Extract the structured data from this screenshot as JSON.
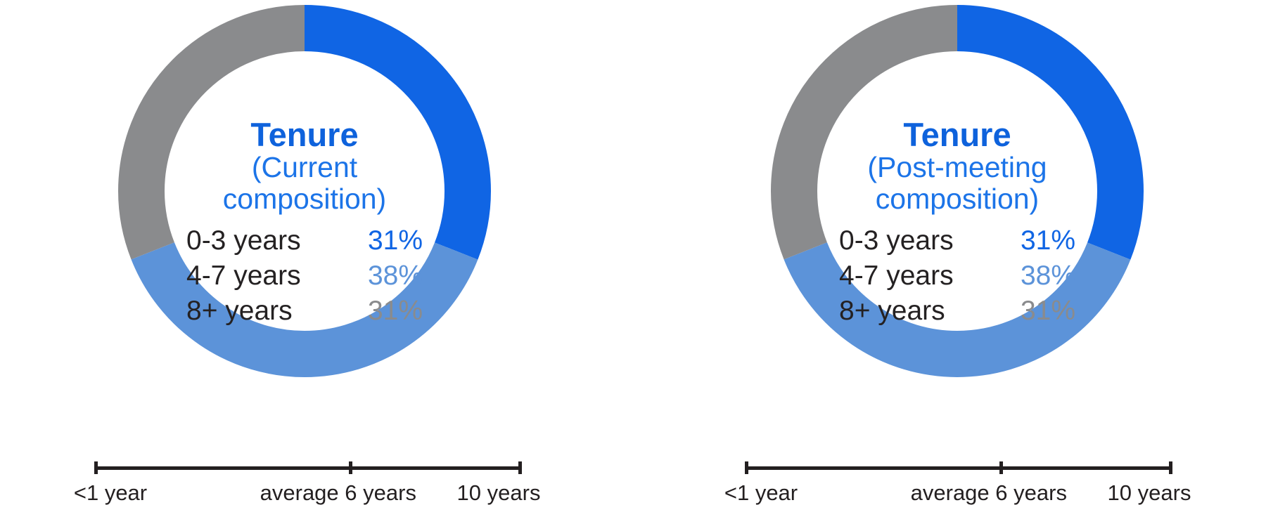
{
  "colors": {
    "title": "#0E62DC",
    "subtitle": "#1C74E8",
    "axis": "#231F20",
    "legend_label": "#242122",
    "segment_blue": "#1065E4",
    "segment_light_blue": "#5C93D9",
    "segment_gray": "#8A8B8D"
  },
  "chart_data": [
    {
      "type": "donut",
      "title": "Tenure",
      "subtitle_lines": [
        "(Current",
        "composition)"
      ],
      "segments": [
        {
          "label": "0-3 years",
          "value": 31,
          "display": "31%",
          "color": "#1065E4"
        },
        {
          "label": "4-7 years",
          "value": 38,
          "display": "38%",
          "color": "#5C93D9"
        },
        {
          "label": "8+ years",
          "value": 31,
          "display": "31%",
          "color": "#8A8B8D"
        }
      ],
      "scale": {
        "left": "<1 year",
        "mid": "average 6 years",
        "right": "10 years",
        "mid_fraction": 0.6
      }
    },
    {
      "type": "donut",
      "title": "Tenure",
      "subtitle_lines": [
        "(Post-meeting",
        "composition)"
      ],
      "segments": [
        {
          "label": "0-3 years",
          "value": 31,
          "display": "31%",
          "color": "#1065E4"
        },
        {
          "label": "4-7 years",
          "value": 38,
          "display": "38%",
          "color": "#5C93D9"
        },
        {
          "label": "8+ years",
          "value": 31,
          "display": "31%",
          "color": "#8A8B8D"
        }
      ],
      "scale": {
        "left": "<1 year",
        "mid": "average 6 years",
        "right": "10 years",
        "mid_fraction": 0.6
      }
    }
  ]
}
